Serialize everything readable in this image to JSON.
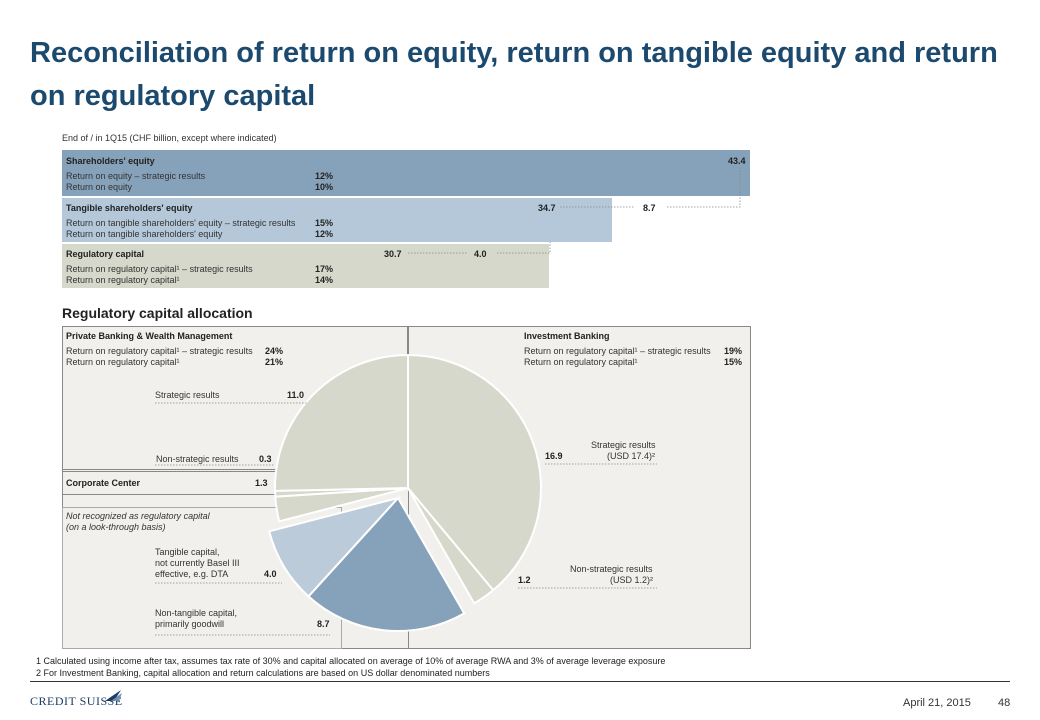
{
  "title": "Reconciliation of return on equity, return on tangible equity and return on regulatory capital",
  "unit_note": "End of / in 1Q15 (CHF billion, except where indicated)",
  "colors": {
    "title": "#1c4a6f",
    "shareholders": "#86a2ba",
    "tangible": "#b4c8da",
    "regulatory": "#d6d8cb",
    "pie_strategic": "#d6d8cb",
    "pie_tangible": "#bccbd9",
    "pie_nontangible": "#86a2ba",
    "panel": "#f2f0ec"
  },
  "chart_data": [
    {
      "type": "bar",
      "orientation": "horizontal",
      "categories": [
        "Shareholders' equity",
        "Tangible shareholders' equity",
        "Regulatory capital"
      ],
      "values": [
        43.4,
        34.7,
        30.7
      ],
      "differences": [
        {
          "label": "8.7",
          "value": 8.7,
          "from": "Shareholders' equity",
          "to": "Tangible shareholders' equity"
        },
        {
          "label": "4.0",
          "value": 4.0,
          "from": "Tangible shareholders' equity",
          "to": "Regulatory capital"
        }
      ],
      "rows": [
        {
          "name": "Shareholders' equity",
          "value_label": "43.4",
          "lines": [
            {
              "label": "Return on equity – strategic results",
              "value": "12%"
            },
            {
              "label": "Return on equity",
              "value": "10%"
            }
          ]
        },
        {
          "name": "Tangible shareholders' equity",
          "value_label": "34.7",
          "lines": [
            {
              "label": "Return on tangible shareholders' equity – strategic results",
              "value": "15%"
            },
            {
              "label": "Return on tangible shareholders' equity",
              "value": "12%"
            }
          ]
        },
        {
          "name": "Regulatory capital",
          "value_label": "30.7",
          "lines": [
            {
              "label": "Return on regulatory capital¹ – strategic results",
              "value": "17%"
            },
            {
              "label": "Return on regulatory capital¹",
              "value": "14%"
            }
          ]
        }
      ]
    },
    {
      "type": "pie",
      "title": "Regulatory capital allocation",
      "slices": [
        {
          "label": "Strategic results (USD 17.4)²",
          "short": "Strategic results",
          "usd": "(USD 17.4)²",
          "value": 16.9,
          "value_label": "16.9",
          "group": "Investment Banking",
          "color": "#d6d8cb"
        },
        {
          "label": "Non-strategic results (USD 1.2)²",
          "short": "Non-strategic results",
          "usd": "(USD 1.2)²",
          "value": 1.2,
          "value_label": "1.2",
          "group": "Investment Banking",
          "color": "#d6d8cb"
        },
        {
          "label": "Non-tangible capital, primarily goodwill",
          "value": 8.7,
          "value_label": "8.7",
          "group": "Not recognized as regulatory capital",
          "color": "#86a2ba"
        },
        {
          "label": "Tangible capital, not currently Basel III effective, e.g. DTA",
          "value": 4.0,
          "value_label": "4.0",
          "group": "Not recognized as regulatory capital",
          "color": "#bccbd9"
        },
        {
          "label": "Corporate Center",
          "value": 1.3,
          "value_label": "1.3",
          "group": "Corporate Center",
          "color": "#d6d8cb"
        },
        {
          "label": "Non-strategic results",
          "value": 0.3,
          "value_label": "0.3",
          "group": "Private Banking & Wealth Management",
          "color": "#d6d8cb"
        },
        {
          "label": "Strategic results",
          "value": 11.0,
          "value_label": "11.0",
          "group": "Private Banking & Wealth Management",
          "color": "#d6d8cb"
        }
      ]
    }
  ],
  "panels": {
    "pbwm": {
      "title": "Private Banking & Wealth Management",
      "l1": "Return on regulatory capital¹ – strategic results",
      "v1": "24%",
      "l2": "Return on regulatory capital¹",
      "v2": "21%",
      "strategic": "Strategic results",
      "strategic_v": "11.0",
      "nonstrategic": "Non-strategic results",
      "nonstrategic_v": "0.3"
    },
    "ib": {
      "title": "Investment Banking",
      "l1": "Return on regulatory capital¹ – strategic results",
      "v1": "19%",
      "l2": "Return on regulatory capital¹",
      "v2": "15%",
      "strategic_1": "Strategic results",
      "strategic_2": "(USD 17.4)²",
      "strategic_v": "16.9",
      "nonstrategic_1": "Non-strategic results",
      "nonstrategic_2": "(USD 1.2)²",
      "nonstrategic_v": "1.2"
    },
    "cc": {
      "title": "Corporate Center",
      "v": "1.3"
    },
    "notrec": {
      "title_1": "Not recognized as regulatory capital",
      "title_2": "(on a look-through basis)",
      "tang_1": "Tangible capital,",
      "tang_2": "not currently Basel III",
      "tang_3": "effective, e.g. DTA",
      "tang_v": "4.0",
      "nontang_1": "Non-tangible capital,",
      "nontang_2": "primarily goodwill",
      "nontang_v": "8.7"
    }
  },
  "footnotes": [
    "1 Calculated using income after tax, assumes tax rate of 30% and capital allocated on average of 10% of average RWA and 3% of average leverage exposure",
    "2 For Investment Banking, capital allocation and return calculations are based on US dollar denominated numbers"
  ],
  "footer": {
    "logo": "CREDIT SUISSE",
    "date": "April 21, 2015",
    "page": "48"
  }
}
